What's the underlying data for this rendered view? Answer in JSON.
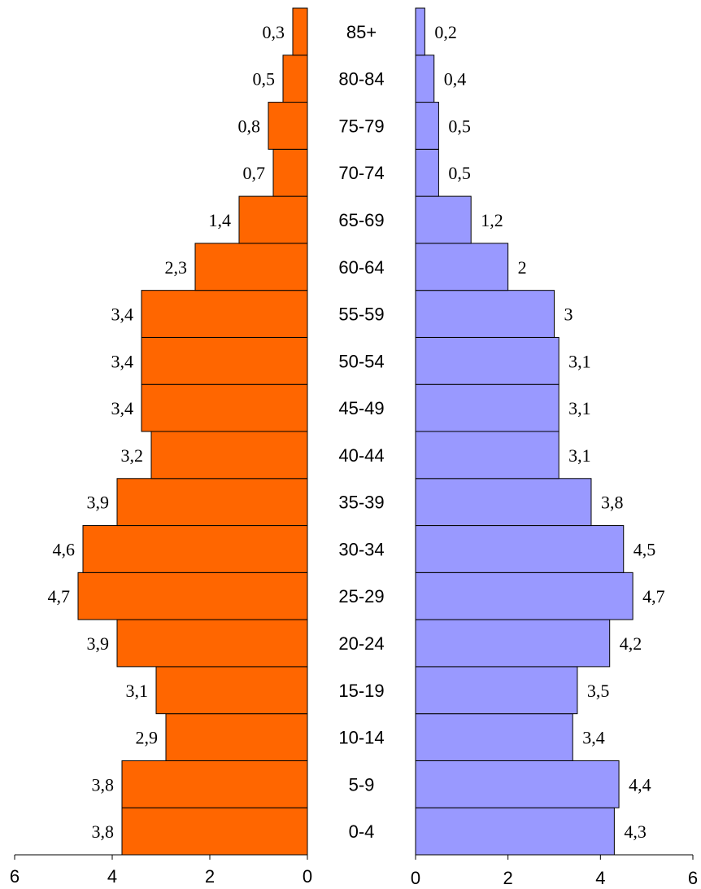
{
  "chart_data": {
    "type": "bar",
    "orientation": "horizontal",
    "layout": "population-pyramid",
    "categories": [
      "0-4",
      "5-9",
      "10-14",
      "15-19",
      "20-24",
      "25-29",
      "30-34",
      "35-39",
      "40-44",
      "45-49",
      "50-54",
      "55-59",
      "60-64",
      "65-69",
      "70-74",
      "75-79",
      "80-84",
      "85+"
    ],
    "series": [
      {
        "side": "left",
        "color": "#FF6600",
        "values": [
          3.8,
          3.8,
          2.9,
          3.1,
          3.9,
          4.7,
          4.6,
          3.9,
          3.2,
          3.4,
          3.4,
          3.4,
          2.3,
          1.4,
          0.7,
          0.8,
          0.5,
          0.3
        ],
        "labels": [
          "3,8",
          "3,8",
          "2,9",
          "3,1",
          "3,9",
          "4,7",
          "4,6",
          "3,9",
          "3,2",
          "3,4",
          "3,4",
          "3,4",
          "2,3",
          "1,4",
          "0,7",
          "0,8",
          "0,5",
          "0,3"
        ]
      },
      {
        "side": "right",
        "color": "#9999FF",
        "values": [
          4.3,
          4.4,
          3.4,
          3.5,
          4.2,
          4.7,
          4.5,
          3.8,
          3.1,
          3.1,
          3.1,
          3.0,
          2.0,
          1.2,
          0.5,
          0.5,
          0.4,
          0.2
        ],
        "labels": [
          "4,3",
          "4,4",
          "3,4",
          "3,5",
          "4,2",
          "4,7",
          "4,5",
          "3,8",
          "3,1",
          "3,1",
          "3,1",
          "3",
          "2",
          "1,2",
          "0,5",
          "0,5",
          "0,4",
          "0,2"
        ]
      }
    ],
    "xlim": [
      0,
      6
    ],
    "left_ticks": [
      "6",
      "4",
      "2",
      "0"
    ],
    "right_ticks": [
      "0",
      "2",
      "4",
      "6"
    ],
    "title": "",
    "xlabel": "",
    "ylabel": "",
    "grid": false,
    "legend": "none"
  }
}
